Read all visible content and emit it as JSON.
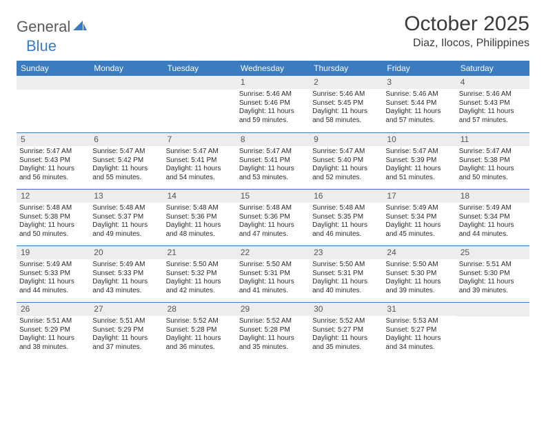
{
  "brand": {
    "word1": "General",
    "word2": "Blue"
  },
  "title": "October 2025",
  "location": "Diaz, Ilocos, Philippines",
  "colors": {
    "header_bg": "#3b7bbf",
    "header_text": "#ffffff",
    "daynum_bg": "#ededed",
    "daynum_text": "#555555",
    "week_divider": "#3b7bbf",
    "body_text": "#2a2a2a",
    "page_bg": "#ffffff"
  },
  "dayNames": [
    "Sunday",
    "Monday",
    "Tuesday",
    "Wednesday",
    "Thursday",
    "Friday",
    "Saturday"
  ],
  "weeks": [
    [
      null,
      null,
      null,
      {
        "n": "1",
        "sunrise": "5:46 AM",
        "sunset": "5:46 PM",
        "day": "11 hours and 59 minutes."
      },
      {
        "n": "2",
        "sunrise": "5:46 AM",
        "sunset": "5:45 PM",
        "day": "11 hours and 58 minutes."
      },
      {
        "n": "3",
        "sunrise": "5:46 AM",
        "sunset": "5:44 PM",
        "day": "11 hours and 57 minutes."
      },
      {
        "n": "4",
        "sunrise": "5:46 AM",
        "sunset": "5:43 PM",
        "day": "11 hours and 57 minutes."
      }
    ],
    [
      {
        "n": "5",
        "sunrise": "5:47 AM",
        "sunset": "5:43 PM",
        "day": "11 hours and 56 minutes."
      },
      {
        "n": "6",
        "sunrise": "5:47 AM",
        "sunset": "5:42 PM",
        "day": "11 hours and 55 minutes."
      },
      {
        "n": "7",
        "sunrise": "5:47 AM",
        "sunset": "5:41 PM",
        "day": "11 hours and 54 minutes."
      },
      {
        "n": "8",
        "sunrise": "5:47 AM",
        "sunset": "5:41 PM",
        "day": "11 hours and 53 minutes."
      },
      {
        "n": "9",
        "sunrise": "5:47 AM",
        "sunset": "5:40 PM",
        "day": "11 hours and 52 minutes."
      },
      {
        "n": "10",
        "sunrise": "5:47 AM",
        "sunset": "5:39 PM",
        "day": "11 hours and 51 minutes."
      },
      {
        "n": "11",
        "sunrise": "5:47 AM",
        "sunset": "5:38 PM",
        "day": "11 hours and 50 minutes."
      }
    ],
    [
      {
        "n": "12",
        "sunrise": "5:48 AM",
        "sunset": "5:38 PM",
        "day": "11 hours and 50 minutes."
      },
      {
        "n": "13",
        "sunrise": "5:48 AM",
        "sunset": "5:37 PM",
        "day": "11 hours and 49 minutes."
      },
      {
        "n": "14",
        "sunrise": "5:48 AM",
        "sunset": "5:36 PM",
        "day": "11 hours and 48 minutes."
      },
      {
        "n": "15",
        "sunrise": "5:48 AM",
        "sunset": "5:36 PM",
        "day": "11 hours and 47 minutes."
      },
      {
        "n": "16",
        "sunrise": "5:48 AM",
        "sunset": "5:35 PM",
        "day": "11 hours and 46 minutes."
      },
      {
        "n": "17",
        "sunrise": "5:49 AM",
        "sunset": "5:34 PM",
        "day": "11 hours and 45 minutes."
      },
      {
        "n": "18",
        "sunrise": "5:49 AM",
        "sunset": "5:34 PM",
        "day": "11 hours and 44 minutes."
      }
    ],
    [
      {
        "n": "19",
        "sunrise": "5:49 AM",
        "sunset": "5:33 PM",
        "day": "11 hours and 44 minutes."
      },
      {
        "n": "20",
        "sunrise": "5:49 AM",
        "sunset": "5:33 PM",
        "day": "11 hours and 43 minutes."
      },
      {
        "n": "21",
        "sunrise": "5:50 AM",
        "sunset": "5:32 PM",
        "day": "11 hours and 42 minutes."
      },
      {
        "n": "22",
        "sunrise": "5:50 AM",
        "sunset": "5:31 PM",
        "day": "11 hours and 41 minutes."
      },
      {
        "n": "23",
        "sunrise": "5:50 AM",
        "sunset": "5:31 PM",
        "day": "11 hours and 40 minutes."
      },
      {
        "n": "24",
        "sunrise": "5:50 AM",
        "sunset": "5:30 PM",
        "day": "11 hours and 39 minutes."
      },
      {
        "n": "25",
        "sunrise": "5:51 AM",
        "sunset": "5:30 PM",
        "day": "11 hours and 39 minutes."
      }
    ],
    [
      {
        "n": "26",
        "sunrise": "5:51 AM",
        "sunset": "5:29 PM",
        "day": "11 hours and 38 minutes."
      },
      {
        "n": "27",
        "sunrise": "5:51 AM",
        "sunset": "5:29 PM",
        "day": "11 hours and 37 minutes."
      },
      {
        "n": "28",
        "sunrise": "5:52 AM",
        "sunset": "5:28 PM",
        "day": "11 hours and 36 minutes."
      },
      {
        "n": "29",
        "sunrise": "5:52 AM",
        "sunset": "5:28 PM",
        "day": "11 hours and 35 minutes."
      },
      {
        "n": "30",
        "sunrise": "5:52 AM",
        "sunset": "5:27 PM",
        "day": "11 hours and 35 minutes."
      },
      {
        "n": "31",
        "sunrise": "5:53 AM",
        "sunset": "5:27 PM",
        "day": "11 hours and 34 minutes."
      },
      null
    ]
  ],
  "labels": {
    "sunrise": "Sunrise: ",
    "sunset": "Sunset: ",
    "daylight": "Daylight: "
  }
}
